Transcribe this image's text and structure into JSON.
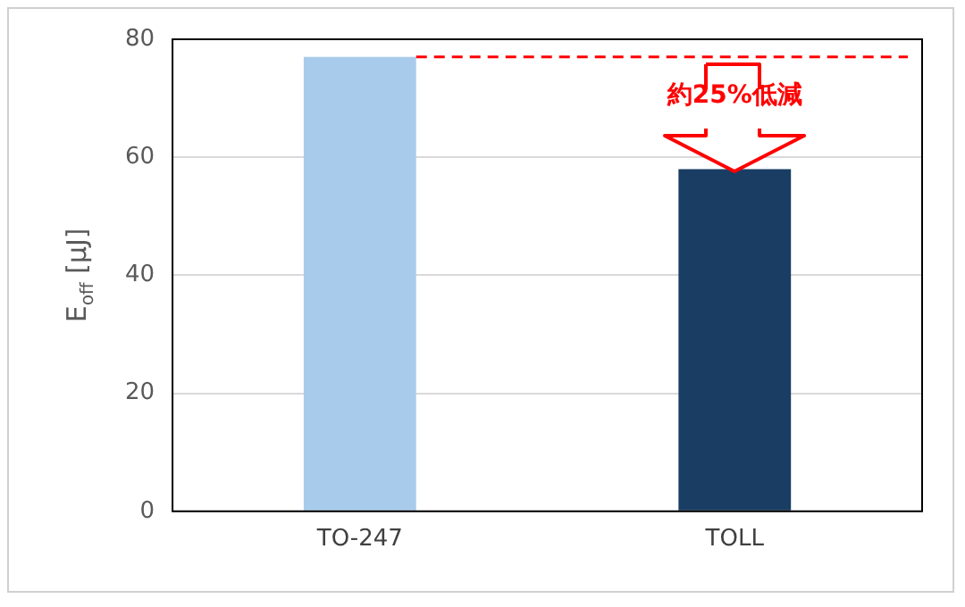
{
  "chart_data": {
    "type": "bar",
    "categories": [
      "TO-247",
      "TOLL"
    ],
    "colors": [
      "#a9cbeb",
      "#193d63"
    ],
    "values": [
      77,
      58
    ],
    "ylabel": "E$_{off}$ [μJ]",
    "ylim": [
      0,
      80
    ],
    "yticks": [
      0,
      20,
      40,
      60,
      80
    ],
    "grid": "y",
    "legend": false,
    "ref_lines": [
      {
        "axis": "y",
        "value": 77,
        "color": "#ff0000",
        "line_style": "dashed"
      }
    ],
    "annotations": [
      "約25%低減"
    ]
  }
}
